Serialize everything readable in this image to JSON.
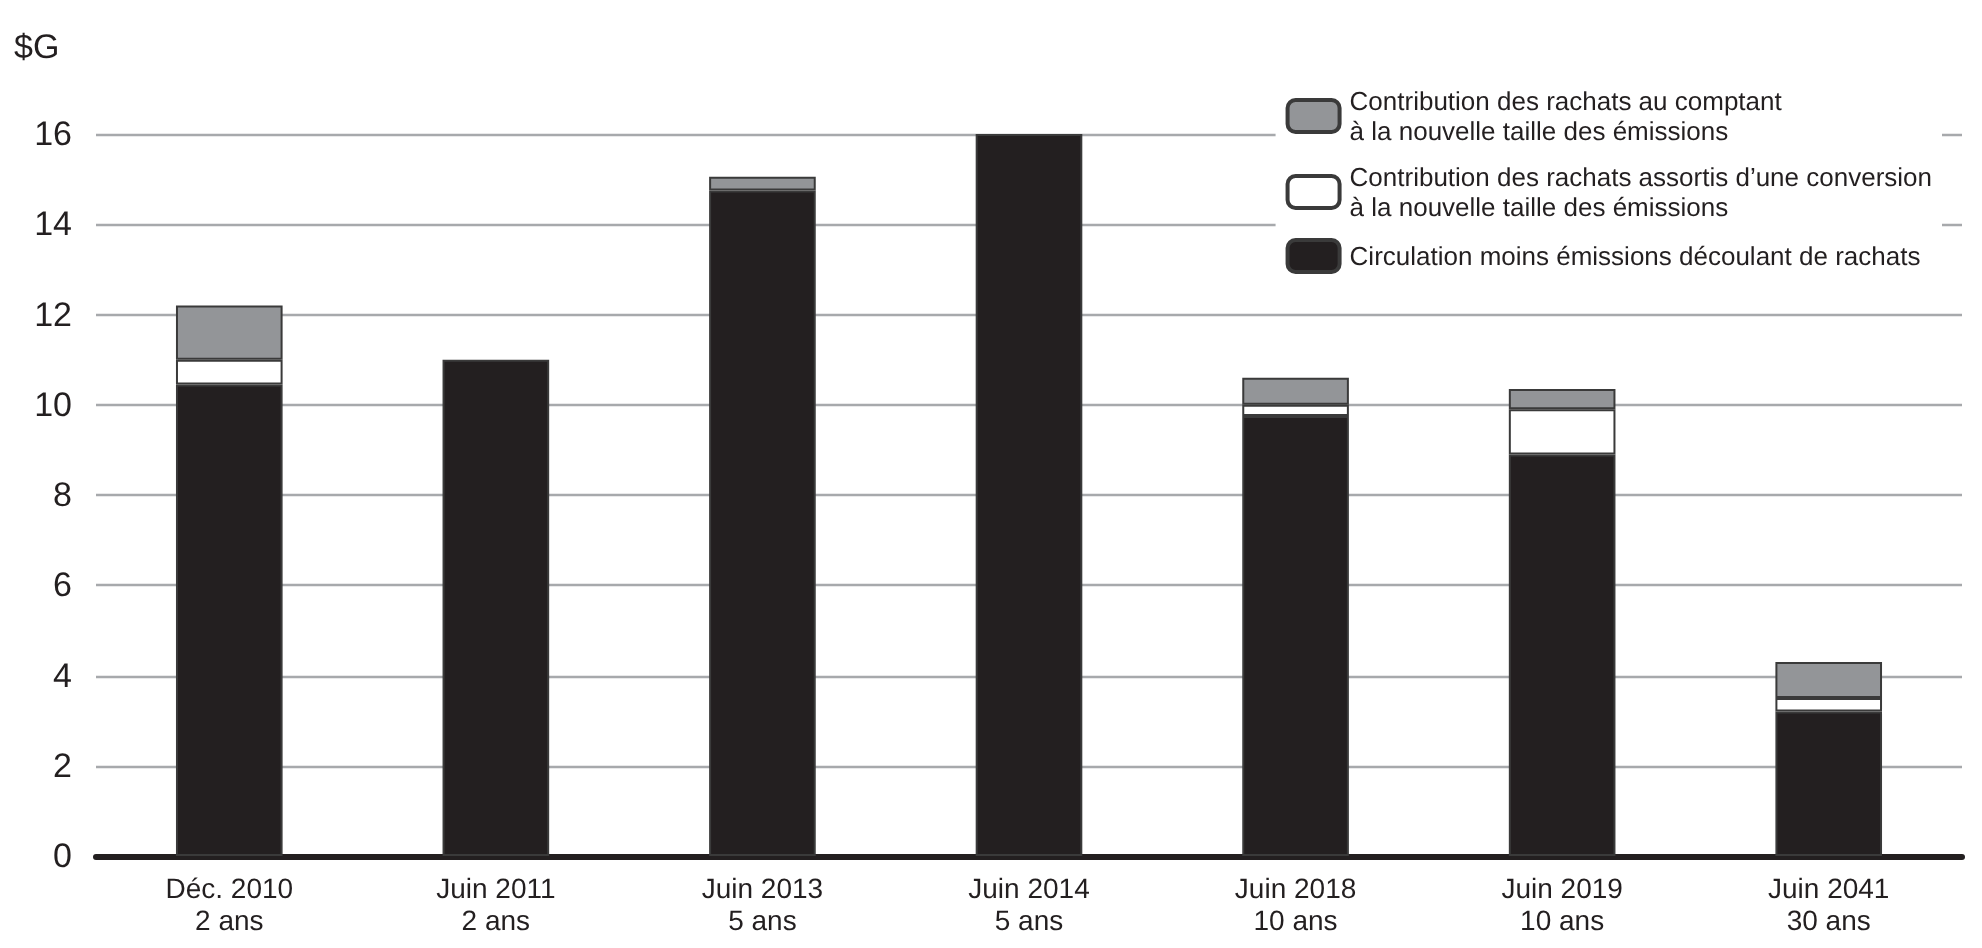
{
  "chart_data": {
    "type": "bar",
    "stacked": true,
    "ylabel": "$G",
    "categories": [
      "Déc. 2010\n2 ans",
      "Juin 2011\n2 ans",
      "Juin 2013\n5 ans",
      "Juin 2014\n5 ans",
      "Juin 2018\n10 ans",
      "Juin 2019\n10 ans",
      "Juin 2041\n30 ans"
    ],
    "series": [
      {
        "name": "Circulation moins émissions découlant de rachats",
        "color": "#231f20",
        "values": [
          10.45,
          11.0,
          14.75,
          16.0,
          9.75,
          8.9,
          3.2
        ]
      },
      {
        "name": "Contribution des rachats assortis d’une conversion\nà la nouvelle taille des émissions",
        "color": "#ffffff",
        "values": [
          0.55,
          null,
          null,
          null,
          0.25,
          1.0,
          0.3
        ]
      },
      {
        "name": "Contribution des rachats au comptant\nà la nouvelle taille des émissions",
        "color": "#939598",
        "values": [
          1.2,
          null,
          0.3,
          null,
          0.6,
          0.45,
          0.8
        ]
      }
    ],
    "ylim": [
      0,
      16
    ],
    "yticks": [
      0,
      2,
      4,
      6,
      8,
      10,
      12,
      14,
      16
    ],
    "grid": "y",
    "legend": "top right"
  }
}
